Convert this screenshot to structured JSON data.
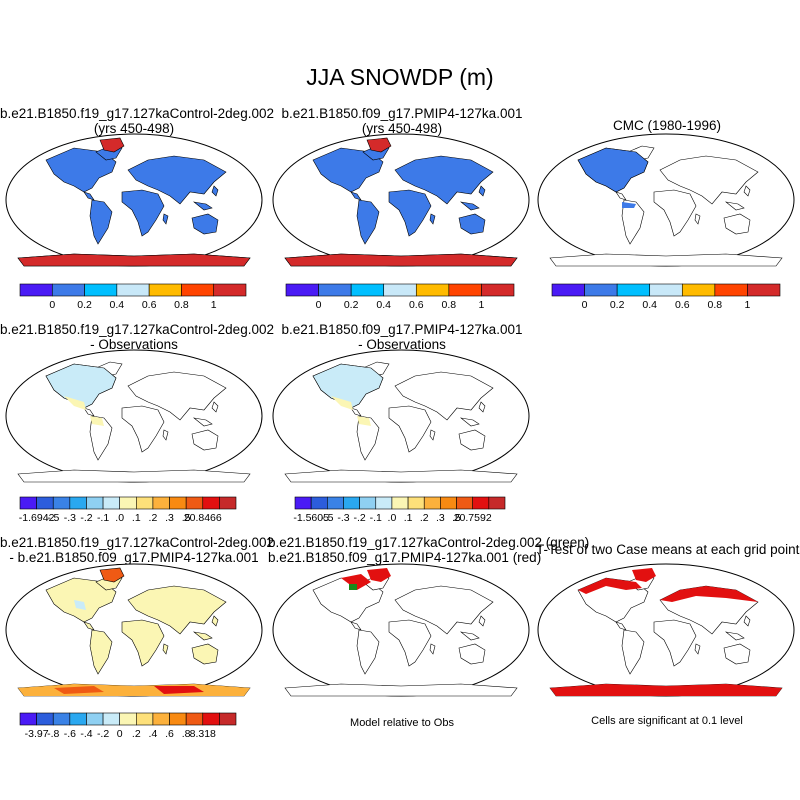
{
  "figure_title": "JJA SNOWDP (m)",
  "panels": [
    {
      "line1": "b.e21.B1850.f19_g17.127kaControl-2deg.002",
      "line2": "(yrs 450-498)"
    },
    {
      "line1": "b.e21.B1850.f09_g17.PMIP4-127ka.001",
      "line2": "(yrs 450-498)"
    },
    {
      "line1": "CMC (1980-1996)",
      "line2": ""
    },
    {
      "line1": "b.e21.B1850.f19_g17.127kaControl-2deg.002",
      "line2": "- Observations"
    },
    {
      "line1": "b.e21.B1850.f09_g17.PMIP4-127ka.001",
      "line2": "- Observations"
    },
    {
      "line1": "b.e21.B1850.f19_g17.127kaControl-2deg.002",
      "line2": "- b.e21.B1850.f09_g17.PMIP4-127ka.001"
    },
    {
      "line1": "b.e21.B1850.f19_g17.127kaControl-2deg.002 (green)",
      "line2": "b.e21.B1850.f09_g17.PMIP4-127ka.001 (red)"
    },
    {
      "line1": "T-Test of two Case means at each grid point",
      "line2": ""
    }
  ],
  "notes": {
    "model_relative": "Model relative to Obs",
    "significance": "Cells are significant at 0.1 level"
  },
  "chart_data": {
    "type": "heatmap",
    "colorbars": [
      {
        "id": "row1",
        "colors": [
          "#4a1bf5",
          "#3d7ae8",
          "#00bfff",
          "#c8e8f8",
          "#ffbb00",
          "#ff4400",
          "#d42a2a"
        ],
        "labels": [
          "0",
          "0.2",
          "0.4",
          "0.6",
          "0.8",
          "1"
        ]
      },
      {
        "id": "row2-left",
        "colors": [
          "#4a1bf5",
          "#2c5ddc",
          "#3a82e6",
          "#2aa8f0",
          "#8fd0f2",
          "#c9ebf8",
          "#fbf6b4",
          "#fde07a",
          "#fcb13c",
          "#f88a12",
          "#ef5a14",
          "#e21010",
          "#c62a2a"
        ],
        "labels": [
          "-1.6942",
          "-.5",
          "-.3",
          "-.2",
          "-.1",
          ".0",
          ".1",
          ".2",
          ".3",
          ".5",
          "20.8466"
        ]
      },
      {
        "id": "row2-right",
        "colors": [
          "#4a1bf5",
          "#2c5ddc",
          "#3a82e6",
          "#2aa8f0",
          "#8fd0f2",
          "#c9ebf8",
          "#fbf6b4",
          "#fde07a",
          "#fcb13c",
          "#f88a12",
          "#ef5a14",
          "#e21010",
          "#c62a2a"
        ],
        "labels": [
          "-1.5605",
          "-.5",
          "-.3",
          "-.2",
          "-.1",
          ".0",
          ".1",
          ".2",
          ".3",
          ".5",
          "20.7592"
        ]
      },
      {
        "id": "row3",
        "colors": [
          "#4a1bf5",
          "#2c5ddc",
          "#3a82e6",
          "#2aa8f0",
          "#8fd0f2",
          "#c9ebf8",
          "#fbf6b4",
          "#fde07a",
          "#fcb13c",
          "#f88a12",
          "#ef5a14",
          "#e21010",
          "#c62a2a"
        ],
        "labels": [
          "-3.97",
          "-.8",
          "-.6",
          "-.4",
          "-.2",
          "0",
          ".2",
          ".4",
          ".6",
          ".8",
          "8.318"
        ]
      }
    ]
  }
}
